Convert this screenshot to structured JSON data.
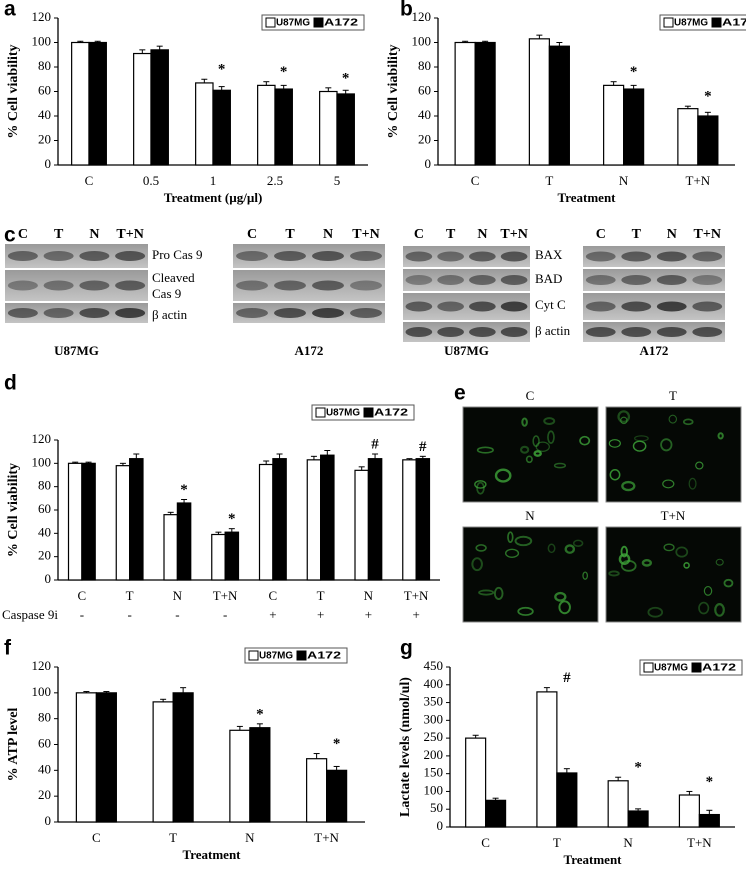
{
  "chart_data": [
    {
      "type": "bar",
      "panel": "a",
      "ylabel": "% Cell viability",
      "xlabel": "Treatment (µg/µl)",
      "categories": [
        "C",
        "0.5",
        "1",
        "2.5",
        "5"
      ],
      "series": [
        {
          "name": "U87MG",
          "color": "#ffffff",
          "values": [
            100,
            91,
            67,
            65,
            60
          ],
          "errors": [
            1,
            3,
            3,
            3,
            3
          ]
        },
        {
          "name": "A172",
          "color": "#000000",
          "values": [
            100,
            94,
            61,
            62,
            58
          ],
          "errors": [
            1,
            3,
            3,
            3,
            3
          ]
        }
      ],
      "annotations": [
        null,
        null,
        "*",
        "*",
        "*"
      ],
      "ylim": [
        0,
        120
      ],
      "yticks": [
        0,
        20,
        40,
        60,
        80,
        100,
        120
      ],
      "grid": false
    },
    {
      "type": "bar",
      "panel": "b",
      "ylabel": "% Cell viability",
      "xlabel": "Treatment",
      "categories": [
        "C",
        "T",
        "N",
        "T+N"
      ],
      "series": [
        {
          "name": "U87MG",
          "color": "#ffffff",
          "values": [
            100,
            103,
            65,
            46
          ],
          "errors": [
            1,
            3,
            3,
            2
          ]
        },
        {
          "name": "A172",
          "color": "#000000",
          "values": [
            100,
            97,
            62,
            40
          ],
          "errors": [
            1,
            3,
            3,
            3
          ]
        }
      ],
      "annotations": [
        null,
        null,
        "*",
        "*"
      ],
      "ylim": [
        0,
        120
      ],
      "yticks": [
        0,
        20,
        40,
        60,
        80,
        100,
        120
      ],
      "grid": false
    },
    {
      "type": "bar",
      "panel": "d",
      "ylabel": "% Cell viability",
      "categories": [
        "C",
        "T",
        "N",
        "T+N",
        "C",
        "T",
        "N",
        "T+N"
      ],
      "row_label": "Caspase 9i",
      "row_values": [
        "-",
        "-",
        "-",
        "-",
        "+",
        "+",
        "+",
        "+"
      ],
      "series": [
        {
          "name": "U87MG",
          "color": "#ffffff",
          "values": [
            100,
            98,
            56,
            39,
            99,
            103,
            94,
            103
          ],
          "errors": [
            1,
            2,
            2,
            2,
            3,
            3,
            3,
            1
          ]
        },
        {
          "name": "A172",
          "color": "#000000",
          "values": [
            100,
            104,
            66,
            41,
            104,
            107,
            104,
            104
          ],
          "errors": [
            1,
            4,
            3,
            3,
            4,
            4,
            4,
            2
          ]
        }
      ],
      "annotations": [
        null,
        null,
        "*",
        "*",
        null,
        null,
        "#",
        "#"
      ],
      "ylim": [
        0,
        120
      ],
      "yticks": [
        0,
        20,
        40,
        60,
        80,
        100,
        120
      ],
      "grid": false
    },
    {
      "type": "bar",
      "panel": "f",
      "ylabel": "% ATP level",
      "xlabel": "Treatment",
      "categories": [
        "C",
        "T",
        "N",
        "T+N"
      ],
      "series": [
        {
          "name": "U87MG",
          "color": "#ffffff",
          "values": [
            100,
            93,
            71,
            49
          ],
          "errors": [
            1,
            2,
            3,
            4
          ]
        },
        {
          "name": "A172",
          "color": "#000000",
          "values": [
            100,
            100,
            73,
            40
          ],
          "errors": [
            1,
            4,
            3,
            3
          ]
        }
      ],
      "annotations": [
        null,
        null,
        "*",
        "*"
      ],
      "ylim": [
        0,
        120
      ],
      "yticks": [
        0,
        20,
        40,
        60,
        80,
        100,
        120
      ],
      "grid": false
    },
    {
      "type": "bar",
      "panel": "g",
      "ylabel": "Lactate levels (nmol/ul)",
      "xlabel": "Treatment",
      "categories": [
        "C",
        "T",
        "N",
        "T+N"
      ],
      "series": [
        {
          "name": "U87MG",
          "color": "#ffffff",
          "values": [
            250,
            380,
            130,
            90
          ],
          "errors": [
            8,
            12,
            10,
            10
          ]
        },
        {
          "name": "A172",
          "color": "#000000",
          "values": [
            75,
            152,
            45,
            35
          ],
          "errors": [
            6,
            12,
            6,
            12
          ]
        }
      ],
      "annotations": [
        null,
        "#",
        "*",
        "*"
      ],
      "ylim": [
        0,
        450
      ],
      "yticks": [
        0,
        50,
        100,
        150,
        200,
        250,
        300,
        350,
        400,
        450
      ],
      "grid": false
    }
  ],
  "panel_c": {
    "letter": "c",
    "groups": [
      {
        "rows": [
          "Pro Cas 9",
          "Cleaved",
          "Cas 9",
          "β actin"
        ],
        "blots": [
          {
            "lanes": [
              "C",
              "T",
              "N",
              "T+N"
            ],
            "cell": "U87MG"
          },
          {
            "lanes": [
              "C",
              "T",
              "N",
              "T+N"
            ],
            "cell": "A172"
          }
        ]
      },
      {
        "rows": [
          "BAX",
          "BAD",
          "Cyt C",
          "β actin"
        ],
        "blots": [
          {
            "lanes": [
              "C",
              "T",
              "N",
              "T+N"
            ],
            "cell": "U87MG"
          },
          {
            "lanes": [
              "C",
              "T",
              "N",
              "T+N"
            ],
            "cell": "A172"
          }
        ]
      }
    ]
  },
  "panel_e": {
    "letter": "e",
    "images": [
      "C",
      "T",
      "N",
      "T+N"
    ]
  }
}
